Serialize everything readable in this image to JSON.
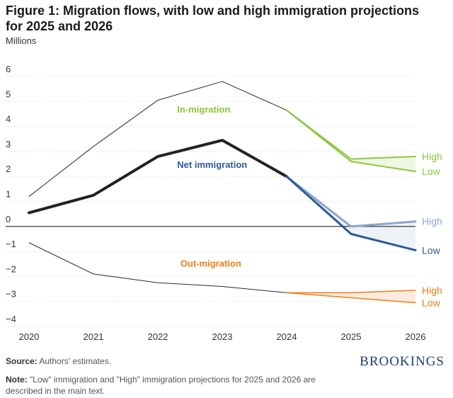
{
  "title": "Figure 1: Migration flows, with low and high immigration projections for 2025 and 2026",
  "source_label": "Source:",
  "source_text": "Authors' estimates.",
  "note_label": "Note:",
  "note_text": "\"Low\" immigration and \"High\" immigration projections for 2025 and 2026 are described in the main text.",
  "brand": "BROOKINGS",
  "colors": {
    "in_migration": "#8cc63f",
    "net_immigration": "#2e5a94",
    "net_high": "#8aa8cc",
    "out_migration": "#f07d1a",
    "history": "#2a2a2a",
    "net_history": "#222222"
  },
  "chart_data": {
    "type": "line",
    "title": "Figure 1: Migration flows, with low and high immigration projections for 2025 and 2026",
    "ylabel": "Millions",
    "ylim": [
      -4,
      6
    ],
    "yticks": [
      6,
      5,
      4,
      3,
      2,
      1,
      0,
      -1,
      -2,
      -3,
      -4
    ],
    "ytick_labels": [
      "6",
      "5",
      "4",
      "3",
      "2",
      "1",
      "0",
      "−1",
      "−2",
      "−3",
      "−4"
    ],
    "x": [
      "2020",
      "2021",
      "2022",
      "2023",
      "2024",
      "2025",
      "2026"
    ],
    "series": [
      {
        "name": "In-migration",
        "kind": "history",
        "x": [
          "2020",
          "2021",
          "2022",
          "2023",
          "2024"
        ],
        "values": [
          1.2,
          3.2,
          5.05,
          5.8,
          4.65
        ]
      },
      {
        "name": "In-migration High",
        "kind": "in_proj",
        "end_label": "High",
        "x": [
          "2024",
          "2025",
          "2026"
        ],
        "values": [
          4.65,
          2.7,
          2.8
        ]
      },
      {
        "name": "In-migration Low",
        "kind": "in_proj",
        "end_label": "Low",
        "x": [
          "2024",
          "2025",
          "2026"
        ],
        "values": [
          4.65,
          2.6,
          2.2
        ]
      },
      {
        "name": "Net immigration",
        "kind": "net_history",
        "x": [
          "2020",
          "2021",
          "2022",
          "2023",
          "2024"
        ],
        "values": [
          0.55,
          1.25,
          2.8,
          3.45,
          2.0
        ]
      },
      {
        "name": "Net immigration High",
        "kind": "net_high",
        "end_label": "High",
        "x": [
          "2024",
          "2025",
          "2026"
        ],
        "values": [
          2.0,
          0.0,
          0.2
        ]
      },
      {
        "name": "Net immigration Low",
        "kind": "net_low",
        "end_label": "Low",
        "x": [
          "2024",
          "2025",
          "2026"
        ],
        "values": [
          2.0,
          -0.3,
          -0.95
        ]
      },
      {
        "name": "Out-migration",
        "kind": "history",
        "x": [
          "2020",
          "2021",
          "2022",
          "2023",
          "2024"
        ],
        "values": [
          -0.65,
          -1.9,
          -2.25,
          -2.4,
          -2.65
        ]
      },
      {
        "name": "Out-migration High",
        "kind": "out_proj",
        "end_label": "High",
        "x": [
          "2024",
          "2025",
          "2026"
        ],
        "values": [
          -2.65,
          -2.65,
          -2.55
        ]
      },
      {
        "name": "Out-migration Low",
        "kind": "out_proj",
        "end_label": "Low",
        "x": [
          "2024",
          "2025",
          "2026"
        ],
        "values": [
          -2.65,
          -2.85,
          -3.05
        ]
      }
    ],
    "bands": [
      {
        "between": [
          "In-migration High",
          "In-migration Low"
        ],
        "kind": "in_proj"
      },
      {
        "between": [
          "Net immigration High",
          "Net immigration Low"
        ],
        "kind": "net_low"
      },
      {
        "between": [
          "Out-migration High",
          "Out-migration Low"
        ],
        "kind": "out_proj"
      }
    ],
    "annotations": [
      {
        "text": "In-migration",
        "x": "2022.3",
        "y": 4.55,
        "kind": "in_proj"
      },
      {
        "text": "Net immigration",
        "x": "2022.3",
        "y": 2.35,
        "kind": "net_low"
      },
      {
        "text": "Out-migration",
        "x": "2022.35",
        "y": -1.6,
        "kind": "out_proj"
      }
    ]
  }
}
